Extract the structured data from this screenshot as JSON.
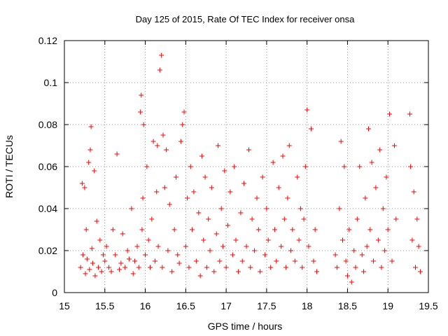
{
  "chart_data": {
    "type": "scatter",
    "title": "Day 125 of 2015, Rate Of TEC Index for receiver onsa",
    "xlabel": "GPS time / hours",
    "ylabel": "ROTI / TECUs",
    "xlim": [
      15,
      19.5
    ],
    "ylim": [
      0,
      0.12
    ],
    "x_ticks": [
      "15",
      "15.5",
      "16",
      "16.5",
      "17",
      "17.5",
      "18",
      "18.5",
      "19",
      "19.5"
    ],
    "y_ticks": [
      "0",
      "0.02",
      "0.04",
      "0.06",
      "0.08",
      "0.1",
      "0.12"
    ],
    "grid": true,
    "marker": "plus",
    "color": "#ff0000",
    "series": [
      {
        "x": [
          15.2,
          15.22,
          15.23,
          15.25,
          15.26,
          15.27,
          15.28,
          15.3,
          15.31,
          15.32,
          15.33,
          15.34,
          15.35,
          15.37,
          15.38,
          15.4,
          15.42,
          15.44,
          15.46,
          15.48,
          15.5,
          15.52,
          15.55,
          15.58,
          15.6,
          15.63,
          15.65,
          15.68,
          15.7,
          15.72,
          15.75,
          15.78,
          15.8,
          15.83,
          15.85,
          15.87,
          15.9,
          15.92,
          15.94,
          15.95,
          15.96,
          15.97,
          15.98,
          16.0,
          16.02,
          16.04,
          16.06,
          16.08,
          16.1,
          16.12,
          16.14,
          16.15,
          16.16,
          16.18,
          16.2,
          16.21,
          16.22,
          16.24,
          16.26,
          16.28,
          16.3,
          16.33,
          16.36,
          16.38,
          16.4,
          16.42,
          16.44,
          16.46,
          16.48,
          16.5,
          16.52,
          16.54,
          16.56,
          16.58,
          16.6,
          16.63,
          16.66,
          16.68,
          16.7,
          16.72,
          16.74,
          16.76,
          16.78,
          16.8,
          16.82,
          16.85,
          16.88,
          16.9,
          16.92,
          16.94,
          16.96,
          16.98,
          17.0,
          17.02,
          17.05,
          17.08,
          17.1,
          17.12,
          17.15,
          17.18,
          17.2,
          17.22,
          17.25,
          17.28,
          17.3,
          17.32,
          17.35,
          17.38,
          17.4,
          17.42,
          17.45,
          17.48,
          17.5,
          17.52,
          17.55,
          17.58,
          17.6,
          17.62,
          17.65,
          17.68,
          17.7,
          17.72,
          17.74,
          17.76,
          17.78,
          17.8,
          17.82,
          17.85,
          17.88,
          17.9,
          17.92,
          17.94,
          17.96,
          17.98,
          18.0,
          18.02,
          18.05,
          18.08,
          18.1,
          18.12,
          18.35,
          18.37,
          18.4,
          18.42,
          18.44,
          18.46,
          18.48,
          18.5,
          18.52,
          18.55,
          18.58,
          18.6,
          18.62,
          18.65,
          18.68,
          18.7,
          18.72,
          18.74,
          18.76,
          18.78,
          18.8,
          18.82,
          18.85,
          18.88,
          18.9,
          18.92,
          18.94,
          18.96,
          18.98,
          19.0,
          19.02,
          19.05,
          19.08,
          19.1,
          19.27,
          19.28,
          19.3,
          19.32,
          19.34,
          19.36,
          19.38,
          19.4
        ],
        "y": [
          0.012,
          0.052,
          0.018,
          0.05,
          0.009,
          0.03,
          0.016,
          0.062,
          0.011,
          0.068,
          0.079,
          0.021,
          0.014,
          0.058,
          0.008,
          0.034,
          0.012,
          0.025,
          0.01,
          0.018,
          0.015,
          0.022,
          0.012,
          0.01,
          0.03,
          0.018,
          0.066,
          0.011,
          0.014,
          0.028,
          0.012,
          0.02,
          0.016,
          0.04,
          0.009,
          0.015,
          0.022,
          0.012,
          0.086,
          0.094,
          0.03,
          0.045,
          0.08,
          0.018,
          0.06,
          0.025,
          0.012,
          0.035,
          0.072,
          0.015,
          0.048,
          0.07,
          0.022,
          0.106,
          0.113,
          0.012,
          0.075,
          0.05,
          0.068,
          0.02,
          0.042,
          0.01,
          0.03,
          0.055,
          0.018,
          0.014,
          0.072,
          0.08,
          0.086,
          0.022,
          0.045,
          0.012,
          0.06,
          0.03,
          0.048,
          0.015,
          0.038,
          0.008,
          0.065,
          0.025,
          0.055,
          0.012,
          0.035,
          0.02,
          0.05,
          0.01,
          0.028,
          0.07,
          0.015,
          0.04,
          0.022,
          0.058,
          0.012,
          0.032,
          0.048,
          0.018,
          0.06,
          0.025,
          0.01,
          0.038,
          0.015,
          0.052,
          0.022,
          0.068,
          0.012,
          0.035,
          0.02,
          0.045,
          0.03,
          0.01,
          0.055,
          0.018,
          0.04,
          0.025,
          0.012,
          0.062,
          0.03,
          0.015,
          0.05,
          0.022,
          0.065,
          0.035,
          0.012,
          0.045,
          0.07,
          0.02,
          0.03,
          0.015,
          0.055,
          0.025,
          0.04,
          0.012,
          0.035,
          0.06,
          0.087,
          0.022,
          0.078,
          0.015,
          0.03,
          0.01,
          0.018,
          0.012,
          0.04,
          0.072,
          0.025,
          0.06,
          0.015,
          0.008,
          0.03,
          0.005,
          0.02,
          0.012,
          0.035,
          0.06,
          0.018,
          0.01,
          0.045,
          0.022,
          0.078,
          0.03,
          0.062,
          0.015,
          0.05,
          0.025,
          0.068,
          0.012,
          0.04,
          0.02,
          0.055,
          0.03,
          0.085,
          0.015,
          0.07,
          0.035,
          0.085,
          0.06,
          0.025,
          0.048,
          0.012,
          0.035,
          0.022,
          0.01
        ]
      }
    ]
  }
}
